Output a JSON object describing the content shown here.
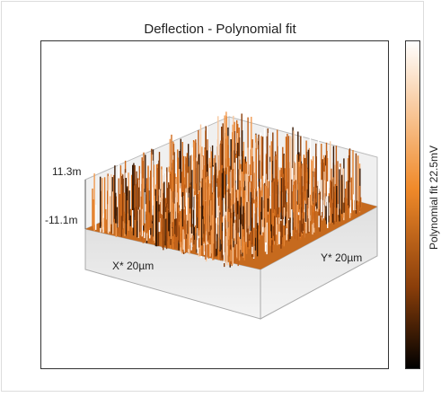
{
  "title": "Deflection - Polynomial fit",
  "z_axis": {
    "top_label": "11.3m",
    "bottom_label": "-11.1m"
  },
  "x_axis": {
    "label": "X* 20µm"
  },
  "y_axis": {
    "label": "Y* 20µm"
  },
  "colorbar": {
    "label": "Polynomial fit 22.5mV"
  }
}
